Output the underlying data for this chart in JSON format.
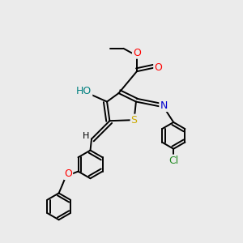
{
  "background_color": "#ebebeb",
  "fig_size": [
    3.0,
    3.0
  ],
  "dpi": 100,
  "atom_colors": {
    "C": "#000000",
    "O": "#ff0000",
    "N": "#0000cd",
    "S": "#ccaa00",
    "Cl": "#228b22",
    "H": "#000000",
    "O_teal": "#008080"
  },
  "bond_color": "#000000",
  "bond_width": 1.4
}
